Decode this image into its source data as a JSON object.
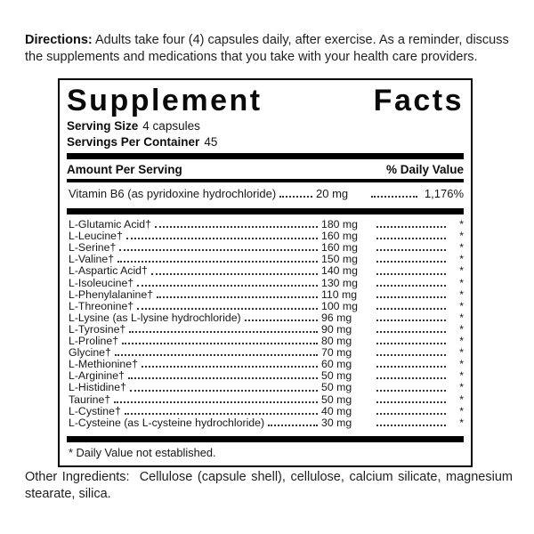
{
  "directions": {
    "label": "Directions:",
    "text": "Adults take four (4) capsules daily, after exercise. As a reminder, discuss the supplements and medications that you take with your health care providers."
  },
  "panel": {
    "title": "Supplement Facts",
    "serving_size_label": "Serving Size",
    "serving_size_value": "4 capsules",
    "servings_per_container_label": "Servings Per Container",
    "servings_per_container_value": "45",
    "header": {
      "amount_label": "Amount Per Serving",
      "dv_label": "% Daily Value"
    },
    "vitamin_rows": [
      {
        "name": "Vitamin B6 (as pyridoxine hydrochloride)",
        "amount": "20 mg",
        "dv": "1,176%"
      }
    ],
    "amino_rows": [
      {
        "name": "L-Glutamic Acid†",
        "amount": "180 mg",
        "dv": "*"
      },
      {
        "name": "L-Leucine†",
        "amount": "160 mg",
        "dv": "*"
      },
      {
        "name": "L-Serine†",
        "amount": "160 mg",
        "dv": "*"
      },
      {
        "name": "L-Valine†",
        "amount": "150 mg",
        "dv": "*"
      },
      {
        "name": "L-Aspartic Acid†",
        "amount": "140 mg",
        "dv": "*"
      },
      {
        "name": "L-Isoleucine†",
        "amount": "130 mg",
        "dv": "*"
      },
      {
        "name": "L-Phenylalanine†",
        "amount": "110 mg",
        "dv": "*"
      },
      {
        "name": "L-Threonine†",
        "amount": "100 mg",
        "dv": "*"
      },
      {
        "name": "L-Lysine (as L-lysine hydrochloride)",
        "amount": "96 mg",
        "dv": "*"
      },
      {
        "name": "L-Tyrosine†",
        "amount": "90 mg",
        "dv": "*"
      },
      {
        "name": "L-Proline†",
        "amount": "80 mg",
        "dv": "*"
      },
      {
        "name": "Glycine†",
        "amount": "70 mg",
        "dv": "*"
      },
      {
        "name": "L-Methionine†",
        "amount": "60 mg",
        "dv": "*"
      },
      {
        "name": "L-Arginine†",
        "amount": "50 mg",
        "dv": "*"
      },
      {
        "name": "L-Histidine†",
        "amount": "50 mg",
        "dv": "*"
      },
      {
        "name": "Taurine†",
        "amount": "50 mg",
        "dv": "*"
      },
      {
        "name": "L-Cystine†",
        "amount": "40 mg",
        "dv": "*"
      },
      {
        "name": "L-Cysteine (as L-cysteine hydrochloride)",
        "amount": "30 mg",
        "dv": "*"
      }
    ],
    "footnote": "* Daily Value not established."
  },
  "other_ingredients": {
    "label": "Other Ingredients:",
    "text": "Cellulose (capsule shell), cellulose, calcium silicate, magnesium stearate, silica."
  }
}
